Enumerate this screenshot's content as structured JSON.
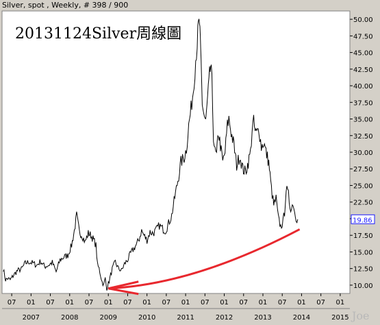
{
  "header": {
    "text": "Silver, spot , Weekly, # 398 / 900"
  },
  "chart_data": {
    "type": "line",
    "title": "20131124Silver周線圖",
    "ylim": [
      8.75,
      51.25
    ],
    "yticks": [
      10.0,
      12.5,
      15.0,
      17.5,
      20.0,
      22.5,
      25.0,
      27.5,
      30.0,
      32.5,
      35.0,
      37.5,
      40.0,
      42.5,
      45.0,
      47.5,
      50.0
    ],
    "ytick_labels": [
      "10.00",
      "12.50",
      "15.00",
      "17.50",
      "20.00",
      "22.50",
      "25.00",
      "27.50",
      "30.00",
      "32.50",
      "35.00",
      "37.50",
      "40.00",
      "42.50",
      "45.00",
      "47.50",
      "50.00"
    ],
    "xlim": [
      2006.25,
      2015.25
    ],
    "xticks": [
      {
        "x": 2006.5,
        "label": "07"
      },
      {
        "x": 2007.0,
        "label": "01",
        "year": "2007"
      },
      {
        "x": 2007.5,
        "label": "07"
      },
      {
        "x": 2008.0,
        "label": "01",
        "year": "2008"
      },
      {
        "x": 2008.5,
        "label": "07"
      },
      {
        "x": 2009.0,
        "label": "01",
        "year": "2009"
      },
      {
        "x": 2009.5,
        "label": "07"
      },
      {
        "x": 2010.0,
        "label": "01",
        "year": "2010"
      },
      {
        "x": 2010.5,
        "label": "07"
      },
      {
        "x": 2011.0,
        "label": "01",
        "year": "2011"
      },
      {
        "x": 2011.5,
        "label": "07"
      },
      {
        "x": 2012.0,
        "label": "01",
        "year": "2012"
      },
      {
        "x": 2012.5,
        "label": "07"
      },
      {
        "x": 2013.0,
        "label": "01",
        "year": "2013"
      },
      {
        "x": 2013.5,
        "label": "07"
      },
      {
        "x": 2014.0,
        "label": "01",
        "year": "2014"
      },
      {
        "x": 2014.5,
        "label": "07"
      },
      {
        "x": 2015.0,
        "label": "01",
        "year": "2015"
      }
    ],
    "series": [
      {
        "x": [
          2006.28,
          2006.34,
          2006.4,
          2006.46,
          2006.55,
          2006.65,
          2006.75,
          2006.85,
          2006.95,
          2007.05,
          2007.15,
          2007.25,
          2007.35,
          2007.45,
          2007.55,
          2007.65,
          2007.75,
          2007.85,
          2007.95,
          2008.05,
          2008.12,
          2008.18,
          2008.25,
          2008.32,
          2008.4,
          2008.48,
          2008.55,
          2008.62,
          2008.68,
          2008.72,
          2008.76,
          2008.8,
          2008.84,
          2008.88,
          2008.92,
          2008.96,
          2009.02,
          2009.1,
          2009.18,
          2009.26,
          2009.34,
          2009.42,
          2009.5,
          2009.58,
          2009.66,
          2009.74,
          2009.8,
          2009.86,
          2009.92,
          2010.0,
          2010.08,
          2010.16,
          2010.24,
          2010.32,
          2010.4,
          2010.48,
          2010.56,
          2010.64,
          2010.72,
          2010.8,
          2010.88,
          2010.96,
          2011.02,
          2011.08,
          2011.14,
          2011.2,
          2011.26,
          2011.3,
          2011.33,
          2011.36,
          2011.38,
          2011.4,
          2011.43,
          2011.47,
          2011.52,
          2011.57,
          2011.62,
          2011.65,
          2011.68,
          2011.72,
          2011.76,
          2011.8,
          2011.85,
          2011.9,
          2011.96,
          2012.02,
          2012.08,
          2012.12,
          2012.18,
          2012.25,
          2012.32,
          2012.4,
          2012.48,
          2012.55,
          2012.62,
          2012.68,
          2012.72,
          2012.76,
          2012.8,
          2012.84,
          2012.9,
          2012.96,
          2013.02,
          2013.08,
          2013.15,
          2013.22,
          2013.28,
          2013.34,
          2013.4,
          2013.46,
          2013.52,
          2013.56,
          2013.6,
          2013.66,
          2013.7,
          2013.74,
          2013.78,
          2013.82,
          2013.86,
          2013.9
        ],
        "values": [
          12.5,
          10.8,
          11.0,
          10.8,
          11.5,
          12.2,
          12.4,
          13.3,
          13.5,
          13.3,
          13.0,
          13.6,
          12.8,
          13.0,
          13.4,
          12.0,
          13.8,
          14.2,
          14.5,
          16.0,
          18.2,
          20.5,
          18.0,
          17.5,
          16.5,
          17.8,
          17.5,
          16.8,
          16.0,
          13.0,
          12.5,
          11.5,
          10.5,
          10.0,
          11.0,
          9.5,
          10.6,
          12.4,
          13.5,
          12.5,
          12.2,
          13.2,
          13.8,
          14.8,
          15.5,
          16.2,
          17.0,
          18.2,
          17.5,
          16.8,
          18.0,
          17.8,
          18.3,
          19.0,
          18.5,
          18.2,
          19.3,
          20.5,
          23.2,
          25.8,
          28.5,
          29.2,
          30.5,
          34.0,
          36.5,
          39.5,
          44.0,
          46.5,
          48.8,
          49.5,
          46.0,
          43.5,
          37.5,
          35.8,
          34.5,
          38.0,
          41.5,
          43.0,
          40.5,
          32.5,
          30.0,
          29.5,
          33.0,
          31.0,
          28.5,
          30.0,
          34.0,
          35.0,
          33.0,
          31.0,
          28.0,
          29.5,
          27.5,
          27.0,
          28.5,
          30.0,
          33.5,
          34.5,
          33.0,
          32.8,
          33.5,
          30.8,
          31.5,
          30.0,
          28.5,
          24.5,
          22.0,
          23.0,
          20.0,
          18.8,
          19.5,
          21.0,
          24.5,
          23.5,
          22.0,
          21.5,
          22.5,
          21.0,
          20.2,
          19.9
        ]
      }
    ],
    "last_price": "19.86",
    "annotation_arrows": [
      {
        "from": [
          2013.95,
          18.4
        ],
        "to": [
          2009.0,
          9.5
        ]
      }
    ]
  },
  "watermark": "Joe",
  "colors": {
    "background": "#d4d0c8",
    "plot_background": "#ffffff",
    "line": "#000000",
    "arrow": "#e8282e",
    "last_price": "#1a1aff"
  }
}
